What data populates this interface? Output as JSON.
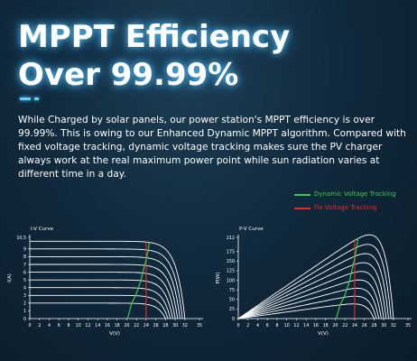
{
  "headline": {
    "line1": "MPPT Efficiency",
    "line2": "Over 99.99%"
  },
  "intro": "While Charged by solar panels, our power station's MPPT efficiency is over 99.99%. This is owing to our Enhanced Dynamic MPPT algorithm. Compared with fixed voltage tracking, dynamic voltage tracking makes sure the PV charger always work at the real maximum power point while sun radiation varies at different time in a day.",
  "legend": [
    {
      "label": "Dynamic Voltage Tracking",
      "color": "#3ec84a"
    },
    {
      "label": "Fix Voltage Tracking",
      "color": "#e02a2a"
    }
  ],
  "colors": {
    "accent": "#5ed0ff",
    "curve": "#ffffff",
    "background": "#112a3d"
  },
  "chart_data": [
    {
      "type": "line",
      "title": "I-V Curve",
      "xlabel": "V(V)",
      "ylabel": "I(A)",
      "xlim": [
        0,
        35
      ],
      "ylim": [
        0,
        10.5
      ],
      "x_ticks": [
        "0",
        "2",
        "4",
        "6",
        "8",
        "10",
        "12",
        "14",
        "16",
        "18",
        "20",
        "22",
        "24",
        "26",
        "28",
        "30",
        "32",
        "35"
      ],
      "y_ticks": [
        "0",
        "1",
        "2",
        "3",
        "4",
        "5",
        "6",
        "7",
        "8",
        "9",
        "10.5"
      ],
      "curves_isc": [
        2,
        3,
        4,
        5,
        6,
        7,
        8,
        9,
        10
      ],
      "curves_voc": [
        28,
        28.5,
        29,
        29.5,
        30,
        30.5,
        31,
        31.5,
        32
      ],
      "dynamic_tracking_v": [
        21,
        21.8,
        22.4,
        22.9,
        23.3,
        23.7,
        24.1,
        24.4,
        24.7
      ],
      "fixed_tracking_v": 24
    },
    {
      "type": "line",
      "title": "P-V Curve",
      "xlabel": "V(V)",
      "ylabel": "P(W)",
      "xlim": [
        0,
        35
      ],
      "ylim": [
        0,
        212
      ],
      "x_ticks": [
        "0",
        "2",
        "4",
        "6",
        "8",
        "10",
        "12",
        "14",
        "16",
        "18",
        "20",
        "22",
        "24",
        "26",
        "28",
        "30",
        "32",
        "35"
      ],
      "y_ticks": [
        "0",
        "25",
        "50",
        "75",
        "100",
        "125",
        "150",
        "175",
        "212"
      ],
      "curves_isc": [
        2,
        3,
        4,
        5,
        6,
        7,
        8,
        9,
        10
      ],
      "curves_voc": [
        28,
        28.5,
        29,
        29.5,
        30,
        30.5,
        31,
        31.5,
        32
      ],
      "dynamic_tracking_v": [
        21,
        21.8,
        22.4,
        22.9,
        23.3,
        23.7,
        24.1,
        24.4,
        24.7
      ],
      "fixed_tracking_v": 24
    }
  ]
}
